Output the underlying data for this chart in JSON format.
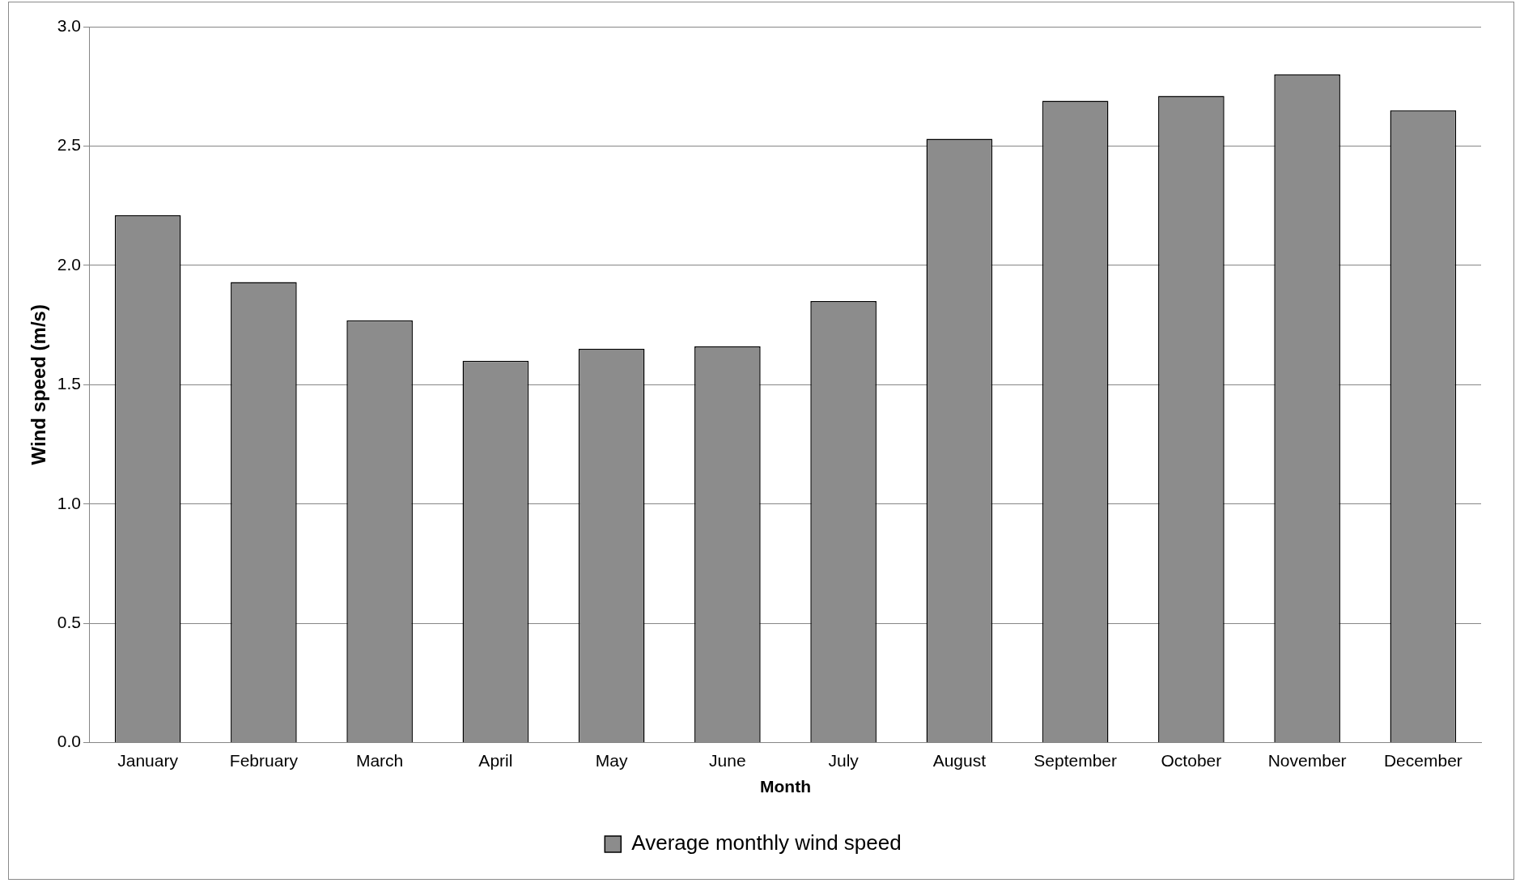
{
  "chart_data": {
    "type": "bar",
    "xlabel": "Month",
    "ylabel": "Wind speed (m/s)",
    "categories": [
      "January",
      "February",
      "March",
      "April",
      "May",
      "June",
      "July",
      "August",
      "September",
      "October",
      "November",
      "December"
    ],
    "series": [
      {
        "name": "Average monthly wind speed",
        "color": "#8c8c8c",
        "values": [
          2.21,
          1.93,
          1.77,
          1.6,
          1.65,
          1.66,
          1.85,
          2.53,
          2.69,
          2.71,
          2.8,
          2.65
        ]
      }
    ],
    "ylim": [
      0,
      3
    ],
    "yticks": [
      {
        "value": 0,
        "label": "0.0"
      },
      {
        "value": 0.5,
        "label": "0.5"
      },
      {
        "value": 1,
        "label": "1.0"
      },
      {
        "value": 1.5,
        "label": "1.5"
      },
      {
        "value": 2,
        "label": "2.0"
      },
      {
        "value": 2.5,
        "label": "2.5"
      },
      {
        "value": 3,
        "label": "3.0"
      }
    ],
    "grid": "y",
    "legend": "bottom"
  }
}
